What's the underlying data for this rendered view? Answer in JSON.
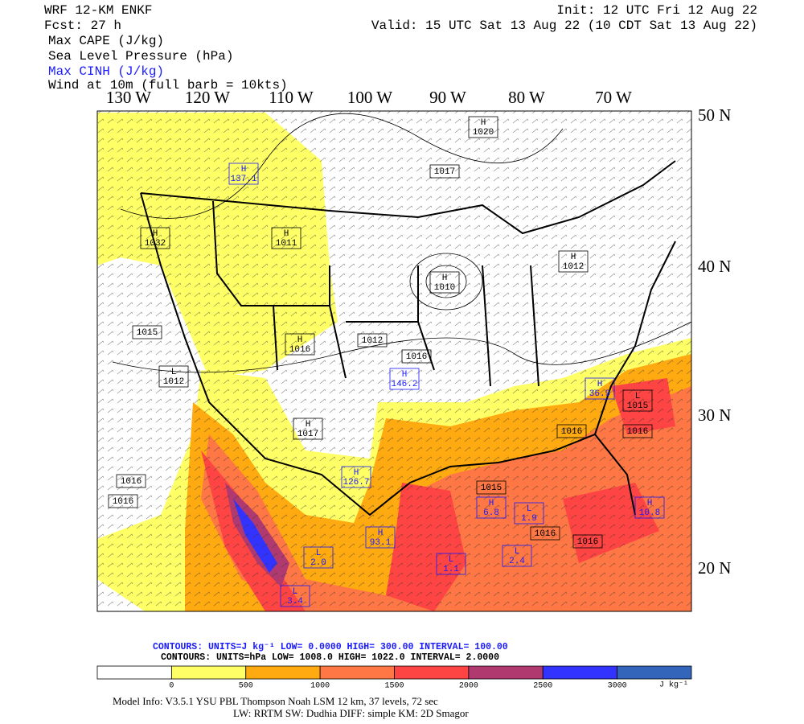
{
  "header": {
    "model": "WRF 12-KM ENKF",
    "forecast": "Fcst:   27 h",
    "init": "Init: 12 UTC Fri 12 Aug 22",
    "valid": "Valid: 15 UTC Sat 13 Aug 22 (10 CDT Sat 13 Aug 22)",
    "fields": [
      "Max CAPE (J/kg)",
      "Sea Level Pressure (hPa)",
      "Max CINH (J/kg)",
      "Wind at 10m (full barb = 10kts)"
    ]
  },
  "longitude_labels": [
    "130 W",
    "120 W",
    "110 W",
    "100 W",
    "90 W",
    "80 W",
    "70 W"
  ],
  "latitude_labels": [
    "50 N",
    "40 N",
    "30 N",
    "20 N"
  ],
  "map_labels": [
    {
      "kind": "H",
      "value": "1020",
      "color": "#000000"
    },
    {
      "value": "1017",
      "color": "#000000"
    },
    {
      "kind": "H",
      "value": "1032",
      "color": "#000000"
    },
    {
      "kind": "H",
      "value": "1011",
      "color": "#000000"
    },
    {
      "kind": "H",
      "value": "1010",
      "color": "#000000"
    },
    {
      "kind": "H",
      "value": "1012",
      "color": "#000000"
    },
    {
      "value": "1015",
      "color": "#000000"
    },
    {
      "kind": "L",
      "value": "1012",
      "color": "#000000"
    },
    {
      "kind": "H",
      "value": "1016",
      "color": "#000000"
    },
    {
      "value": "1012",
      "color": "#000000"
    },
    {
      "value": "1016",
      "color": "#000000"
    },
    {
      "kind": "H",
      "value": "1017",
      "color": "#000000"
    },
    {
      "value": "1016",
      "color": "#000000"
    },
    {
      "value": "1016",
      "color": "#000000"
    },
    {
      "value": "1015",
      "color": "#000000"
    },
    {
      "value": "1016",
      "color": "#000000"
    },
    {
      "value": "1016",
      "color": "#000000"
    },
    {
      "kind": "L",
      "value": "1015",
      "color": "#000000"
    },
    {
      "value": "1016",
      "color": "#000000"
    },
    {
      "value": "1016",
      "color": "#000000"
    },
    {
      "kind": "H",
      "value": "146.2",
      "color": "#1a1aff"
    },
    {
      "kind": "H",
      "value": "137.1",
      "color": "#1a1aff"
    },
    {
      "kind": "H",
      "value": "126.7",
      "color": "#1a1aff"
    },
    {
      "kind": "H",
      "value": "93.1",
      "color": "#1a1aff"
    },
    {
      "kind": "L",
      "value": "1.1",
      "color": "#1a1aff"
    },
    {
      "kind": "L",
      "value": "1.9",
      "color": "#1a1aff"
    },
    {
      "kind": "L",
      "value": "2.4",
      "color": "#1a1aff"
    },
    {
      "kind": "H",
      "value": "6.8",
      "color": "#1a1aff"
    },
    {
      "kind": "H",
      "value": "10.8",
      "color": "#1a1aff"
    },
    {
      "kind": "H",
      "value": "36.9",
      "color": "#1a1aff"
    },
    {
      "kind": "L",
      "value": "3.4",
      "color": "#1a1aff"
    },
    {
      "kind": "L",
      "value": "2.0",
      "color": "#1a1aff"
    }
  ],
  "contours": {
    "cape": "CONTOURS:  UNITS=J kg⁻¹  LOW=   0.0000      HIGH=  300.00      INTERVAL=   100.00",
    "slp": "CONTOURS:  UNITS=hPa  LOW=   1008.0      HIGH=  1022.0      INTERVAL=   2.0000"
  },
  "colorbar": {
    "colors": [
      "#ffffff",
      "#ffff66",
      "#ffaa11",
      "#ff7744",
      "#ff4444",
      "#b03a70",
      "#3333ff",
      "#3366bb"
    ],
    "ticks": [
      0,
      500,
      1000,
      1500,
      2000,
      2500,
      3000
    ],
    "unit": "J kg⁻¹"
  },
  "footer": {
    "line1": "Model Info: V3.5.1         YSU PBL  Thompson      Noah LSM  12 km,    37 levels,    72 sec",
    "line2": "LW: RRTM SW: Dudhia  DIFF: simple KM: 2D Smagor"
  }
}
